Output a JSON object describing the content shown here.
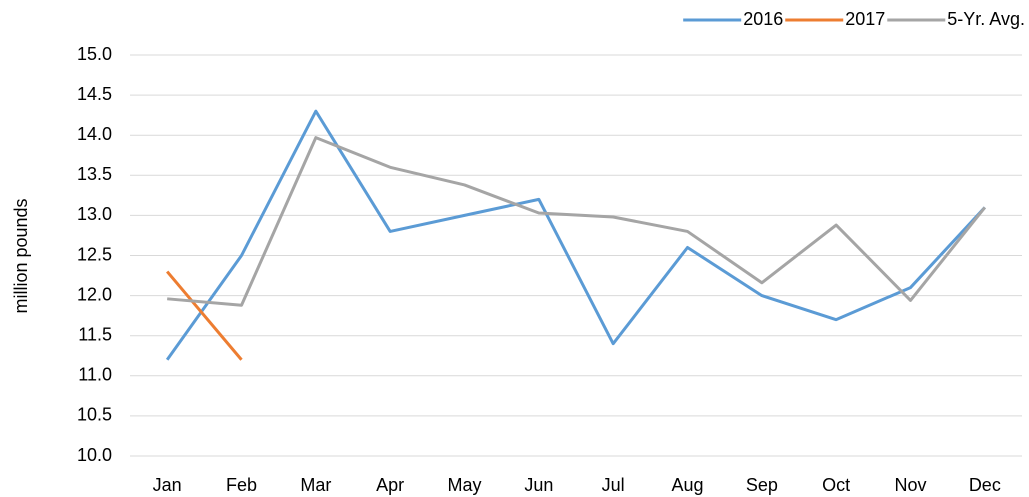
{
  "chart_data": {
    "type": "line",
    "y_label": "million pounds",
    "categories": [
      "Jan",
      "Feb",
      "Mar",
      "Apr",
      "May",
      "Jun",
      "Jul",
      "Aug",
      "Sep",
      "Oct",
      "Nov",
      "Dec"
    ],
    "series": [
      {
        "name": "2016",
        "color": "#5b9bd5",
        "values": [
          11.2,
          12.5,
          14.3,
          12.8,
          13.0,
          13.2,
          11.4,
          12.6,
          12.0,
          11.7,
          12.1,
          13.1
        ]
      },
      {
        "name": "2017",
        "color": "#ed7d31",
        "values": [
          12.3,
          11.2,
          null,
          null,
          null,
          null,
          null,
          null,
          null,
          null,
          null,
          null
        ]
      },
      {
        "name": "5-Yr. Avg.",
        "color": "#a5a5a5",
        "values": [
          11.96,
          11.88,
          13.97,
          13.6,
          13.38,
          13.03,
          12.98,
          12.8,
          12.16,
          12.88,
          11.94,
          13.1
        ]
      }
    ],
    "ylim": [
      10,
      15
    ],
    "yticks": [
      {
        "value": 10,
        "label": "10.0"
      },
      {
        "value": 10.5,
        "label": "10.5"
      },
      {
        "value": 11,
        "label": "11.0"
      },
      {
        "value": 11.5,
        "label": "11.5"
      },
      {
        "value": 12,
        "label": "12.0"
      },
      {
        "value": 12.5,
        "label": "12.5"
      },
      {
        "value": 13,
        "label": "13.0"
      },
      {
        "value": 13.5,
        "label": "13.5"
      },
      {
        "value": 14,
        "label": "14.0"
      },
      {
        "value": 14.5,
        "label": "14.5"
      },
      {
        "value": 15,
        "label": "15.0"
      }
    ],
    "grid": true,
    "legend": "top-right"
  }
}
